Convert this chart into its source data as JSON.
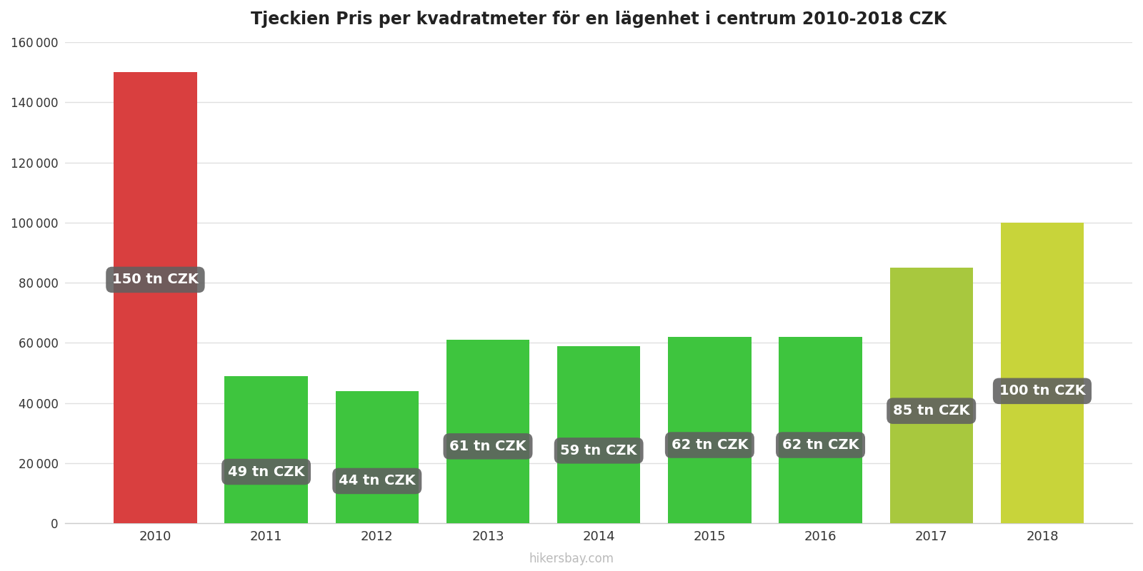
{
  "title": "Tjeckien Pris per kvadratmeter för en lägenhet i centrum 2010-2018 CZK",
  "years": [
    2010,
    2011,
    2012,
    2013,
    2014,
    2015,
    2016,
    2017,
    2018
  ],
  "values": [
    150000,
    49000,
    44000,
    61000,
    59000,
    62000,
    62000,
    85000,
    100000
  ],
  "labels": [
    "150 tn CZK",
    "49 tn CZK",
    "44 tn CZK",
    "61 tn CZK",
    "59 tn CZK",
    "62 tn CZK",
    "62 tn CZK",
    "85 tn CZK",
    "100 tn CZK"
  ],
  "bar_colors": [
    "#d93f3f",
    "#3ec53e",
    "#3ec53e",
    "#3ec53e",
    "#3ec53e",
    "#3ec53e",
    "#3ec53e",
    "#a8c83e",
    "#c8d43a"
  ],
  "label_y_fractions": [
    0.54,
    0.35,
    0.32,
    0.42,
    0.41,
    0.42,
    0.42,
    0.44,
    0.44
  ],
  "ylim": [
    0,
    160000
  ],
  "yticks": [
    0,
    20000,
    40000,
    60000,
    80000,
    100000,
    120000,
    140000,
    160000
  ],
  "background_color": "#ffffff",
  "grid_color": "#e0e0e0",
  "title_fontsize": 17,
  "label_box_color": "#606060",
  "label_text_color": "#ffffff",
  "label_fontsize": 14,
  "watermark": "hikersbay.com",
  "bar_width": 0.75
}
